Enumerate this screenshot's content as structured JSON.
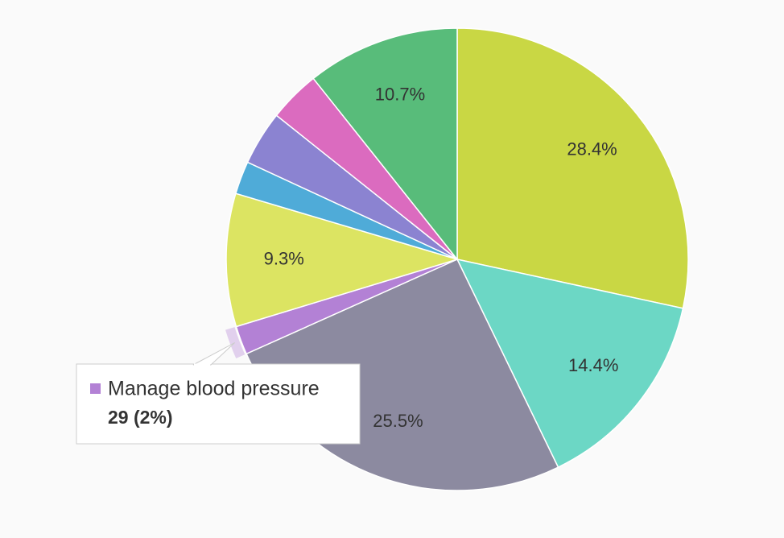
{
  "chart_data": {
    "type": "pie",
    "categories": [
      null,
      null,
      null,
      "Manage blood pressure",
      null,
      null,
      null,
      null,
      null
    ],
    "values": [
      28.4,
      14.4,
      25.5,
      2,
      9.3,
      2.3,
      3.8,
      3.6,
      10.7
    ],
    "value_labels": [
      "28.4%",
      "14.4%",
      "25.5%",
      null,
      "9.3%",
      null,
      null,
      null,
      "10.7%"
    ],
    "colors": [
      "#c9d744",
      "#6cd7c5",
      "#8c8aa0",
      "#b381d5",
      "#dce462",
      "#4fabd8",
      "#8b83d1",
      "#db6bbf",
      "#58bc7a"
    ],
    "tooltip": {
      "slice": 3,
      "text": "29 (2%)"
    }
  }
}
